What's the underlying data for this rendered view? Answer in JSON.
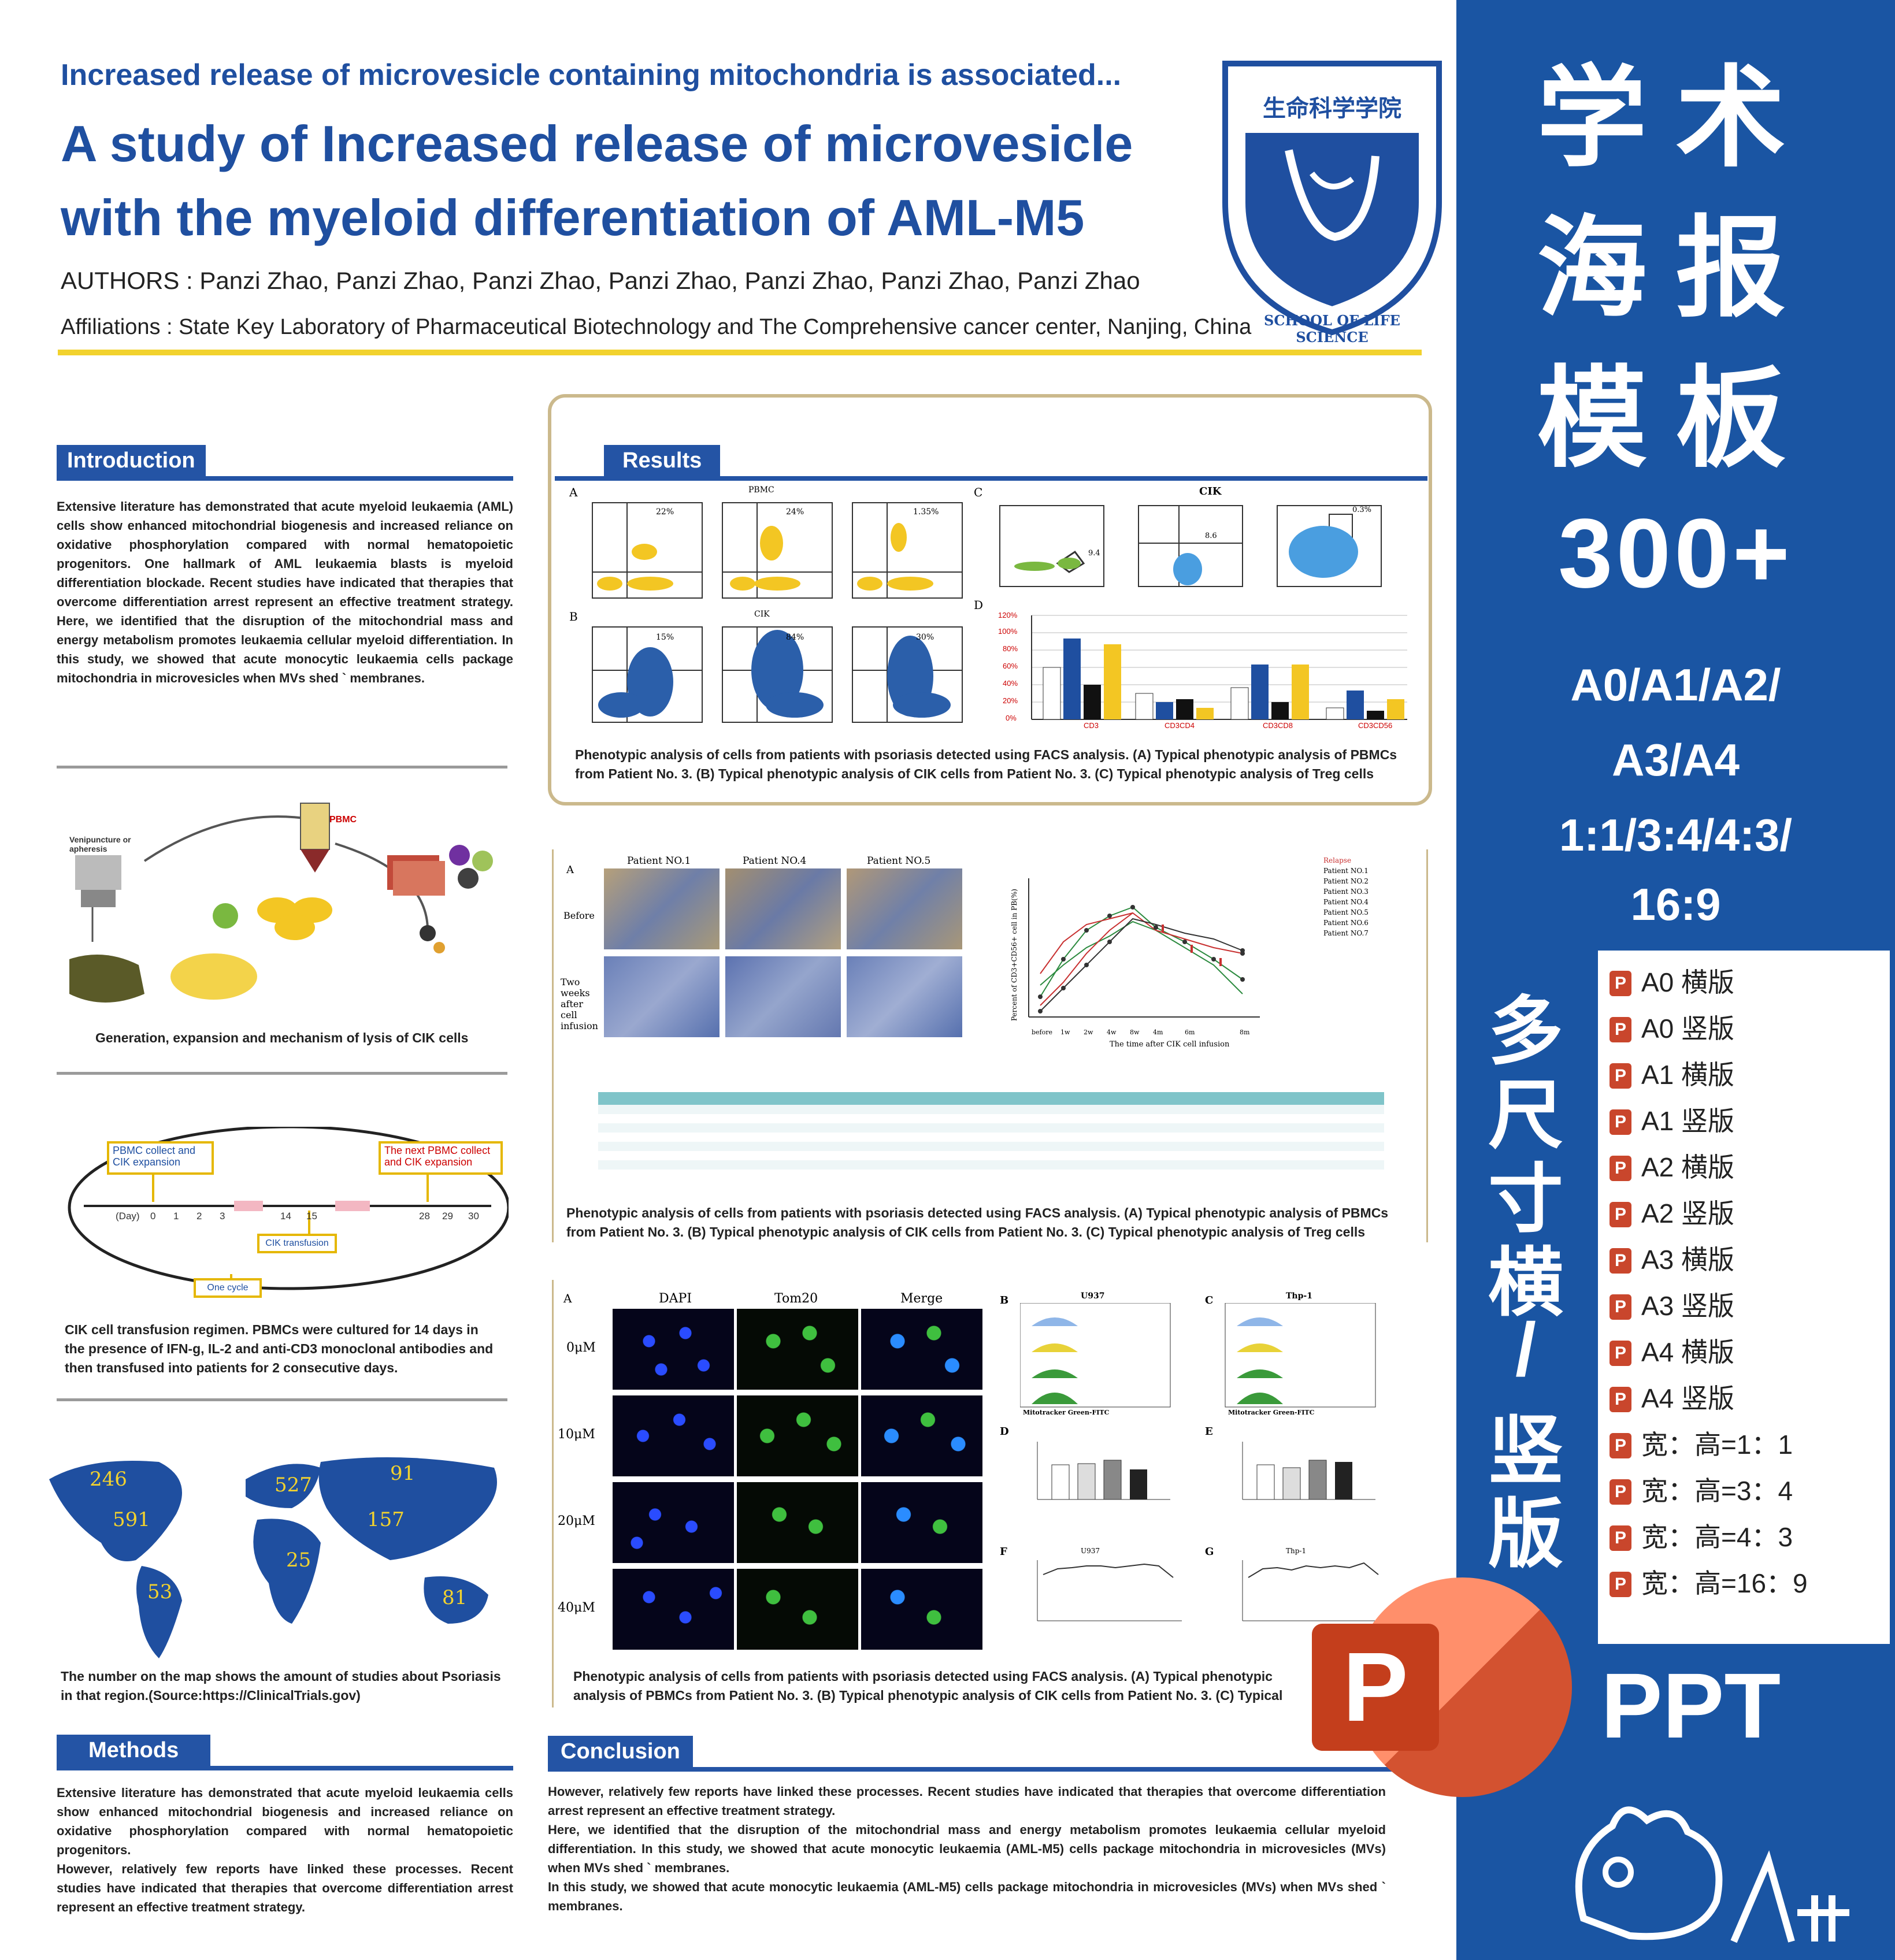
{
  "header": {
    "subtitle": "Increased release of microvesicle containing mitochondria is associated...",
    "title": "A  study of Increased release of microvesicle with the myeloid differentiation of AML-M5",
    "authors": "AUTHORS : Panzi Zhao, Panzi Zhao, Panzi Zhao, Panzi Zhao, Panzi Zhao, Panzi Zhao, Panzi Zhao",
    "affiliations": "Affiliations : State Key Laboratory of Pharmaceutical Biotechnology and The Comprehensive cancer center, Nanjing, China"
  },
  "logo": {
    "cn": "生命科学学院",
    "en": "SCHOOL OF LIFE SCIENCE"
  },
  "introduction": {
    "title": "Introduction",
    "text": "Extensive literature has demonstrated that acute myeloid leukaemia (AML) cells show enhanced mitochondrial biogenesis and increased reliance on oxidative phosphorylation compared with normal hematopoietic progenitors. One hallmark of AML leukaemia blasts is myeloid differentiation blockade. Recent studies have indicated that therapies that overcome differentiation arrest represent an effective treatment strategy. Here, we identified that the disruption of the mitochondrial mass and energy metabolism promotes leukaemia cellular myeloid differentiation. In this study, we showed that acute monocytic leukaemia cells package mitochondria in microvesicles when MVs shed ` membranes."
  },
  "cik_figure": {
    "labels": [
      "PBMC",
      "Venipuncture or apheresis"
    ],
    "caption": "Generation, expansion and mechanism of lysis of CIK cells"
  },
  "timeline": {
    "box1": "PBMC collect and CIK expansion",
    "box2": "The next PBMC collect and CIK expansion",
    "box3": "CIK transfusion",
    "box4": "One cycle",
    "day_label": "(Day)",
    "ticks": [
      "0",
      "1",
      "2",
      "3",
      "14",
      "15",
      "28",
      "29",
      "30"
    ],
    "caption": "CIK cell transfusion regimen. PBMCs were cultured for 14 days in the presence of IFN-g, IL-2 and anti-CD3 monoclonal antibodies and then transfused into patients for 2 consecutive days."
  },
  "map": {
    "numbers": [
      {
        "label": "246",
        "region": "north-america-west"
      },
      {
        "label": "591",
        "region": "north-america"
      },
      {
        "label": "527",
        "region": "europe"
      },
      {
        "label": "91",
        "region": "russia"
      },
      {
        "label": "157",
        "region": "asia"
      },
      {
        "label": "25",
        "region": "africa"
      },
      {
        "label": "53",
        "region": "south-america"
      },
      {
        "label": "81",
        "region": "australia"
      }
    ],
    "caption": "The number on the map shows the amount of studies about Psoriasis in that region.(Source:https://ClinicalTrials.gov)"
  },
  "methods": {
    "title": "Methods",
    "text1": "Extensive literature has demonstrated that acute myeloid leukaemia cells show enhanced mitochondrial biogenesis and increased reliance on oxidative phosphorylation compared with normal hematopoietic progenitors.",
    "text2": "However, relatively few reports have linked these processes. Recent studies have indicated that therapies that overcome differentiation arrest represent an effective treatment strategy."
  },
  "results": {
    "title": "Results",
    "fig1": {
      "panel_labels": [
        "A",
        "B",
        "C",
        "D"
      ],
      "titles": [
        "PBMC",
        "CIK",
        "CIK"
      ],
      "pcts": [
        "22%",
        "24%",
        "1.35%",
        "15%",
        "84%",
        "30%",
        "9.4",
        "8.6",
        "0.3%"
      ],
      "bar_categories": [
        "CD3",
        "CD3CD4",
        "CD3CD8",
        "CD3CD56"
      ],
      "bar_yticks": [
        "0%",
        "20%",
        "40%",
        "60%",
        "80%",
        "100%",
        "120%"
      ],
      "caption": "Phenotypic analysis of cells from patients with psoriasis detected using FACS analysis. (A) Typical phenotypic analysis of PBMCs from Patient No. 3. (B) Typical phenotypic analysis of CIK cells from Patient No. 3. (C) Typical phenotypic analysis of Treg cells"
    },
    "fig2": {
      "col_titles": [
        "Patient NO.1",
        "Patient NO.4",
        "Patient NO.5"
      ],
      "row_titles": [
        "Before",
        "Two weeks after cell infusion"
      ],
      "legend": [
        "Relapse",
        "Patient NO.1",
        "Patient NO.2",
        "Patient NO.3",
        "Patient NO.4",
        "Patient NO.5",
        "Patient NO.6",
        "Patient NO.7"
      ],
      "ylabel": "Percent of CD3+CD56+ cell in PB(%)",
      "xlabel": "The time after CIK cell infusion",
      "xticks": [
        "before",
        "1w",
        "2w",
        "4w",
        "8w",
        "4m",
        "6m",
        "8m"
      ],
      "caption": "Phenotypic analysis of cells from patients with psoriasis detected using FACS analysis. (A) Typical phenotypic analysis of PBMCs from Patient No. 3. (B) Typical phenotypic analysis of CIK cells from Patient No. 3. (C) Typical phenotypic analysis of Treg cells"
    },
    "fig3": {
      "panel_labels": [
        "A",
        "B",
        "C",
        "D",
        "E",
        "F",
        "G"
      ],
      "col_titles": [
        "DAPI",
        "Tom20",
        "Merge"
      ],
      "row_titles": [
        "0μM",
        "10μM",
        "20μM",
        "40μM"
      ],
      "hist_titles": [
        "U937",
        "Thp-1"
      ],
      "hist_xlabel": "Mitotracker Green-FITC",
      "caption": "Phenotypic analysis of cells from patients with psoriasis detected using FACS analysis. (A) Typical phenotypic analysis of PBMCs from Patient No. 3. (B) Typical phenotypic analysis of CIK cells from Patient No. 3. (C) Typical phenotypic analysis of Treg cells"
    }
  },
  "conclusion": {
    "title": "Conclusion",
    "text1": "However, relatively few reports have linked these processes. Recent studies have indicated that therapies that overcome differentiation arrest represent an effective treatment strategy.",
    "text2": "Here, we identified that the disruption of the mitochondrial mass and energy metabolism promotes leukaemia cellular myeloid differentiation. In this study, we showed that acute monocytic leukaemia (AML-M5) cells package mitochondria in microvesicles (MVs) when MVs shed ` membranes.",
    "text3": "In this study, we showed that acute monocytic leukaemia (AML-M5) cells package mitochondria in microvesicles (MVs) when MVs shed ` membranes."
  },
  "sidebar": {
    "line1": "学术",
    "line2": "海报",
    "line3": "模板",
    "count": "300+",
    "sizes1": "A0/A1/A2/",
    "sizes2": "A3/A4",
    "ratios1": "1:1/3:4/4:3/",
    "ratios2": "16:9",
    "vertical": [
      "多",
      "尺",
      "寸",
      "横",
      "/",
      "竖",
      "版"
    ],
    "list": [
      "A0 横版",
      "A0 竖版",
      "A1 横版",
      "A1 竖版",
      "A2 横版",
      "A2 竖版",
      "A3 横版",
      "A3 竖版",
      "A4 横版",
      "A4 竖版",
      "宽：高=1：1",
      "宽：高=3：4",
      "宽：高=4：3",
      "宽：高=16：9"
    ],
    "ppt_label": "PPT",
    "ppt_icon_letter": "P"
  },
  "colors": {
    "primary_blue": "#1f4fa0",
    "sidebar_blue": "#1a55a3",
    "accent_yellow": "#f2d22e",
    "panel_border": "#cbb98c",
    "ppt_red": "#c9462c"
  }
}
